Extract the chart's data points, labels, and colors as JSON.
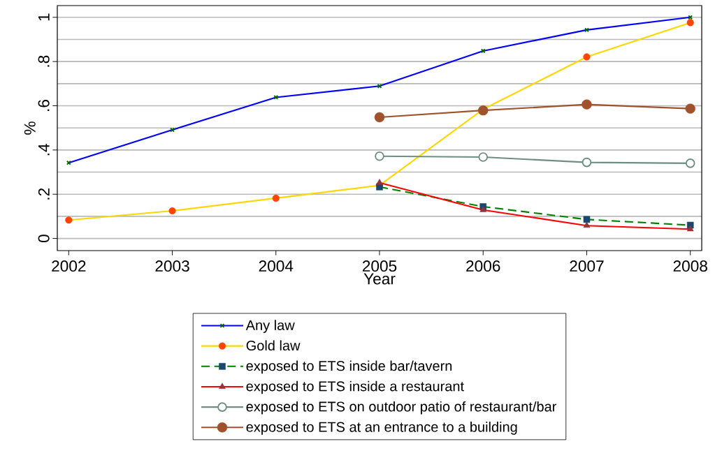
{
  "chart_data": {
    "type": "line",
    "xlabel": "Year",
    "ylabel": "%",
    "x": [
      2002,
      2003,
      2004,
      2005,
      2006,
      2007,
      2008
    ],
    "xlim": [
      2001.89,
      2008.11
    ],
    "xticks": [
      2002,
      2003,
      2004,
      2005,
      2006,
      2007,
      2008
    ],
    "ylim": [
      -0.055,
      1.053
    ],
    "yticks": [
      {
        "value": 0,
        "label": "0"
      },
      {
        "value": 0.1,
        "label": null
      },
      {
        "value": 0.2,
        "label": ".2"
      },
      {
        "value": 0.3,
        "label": null
      },
      {
        "value": 0.4,
        "label": ".4"
      },
      {
        "value": 0.5,
        "label": null
      },
      {
        "value": 0.6,
        "label": ".6"
      },
      {
        "value": 0.7,
        "label": null
      },
      {
        "value": 0.8,
        "label": ".8"
      },
      {
        "value": 0.9,
        "label": null
      },
      {
        "value": 1,
        "label": "1"
      }
    ],
    "grid": "y",
    "legend": "bottom",
    "series": [
      {
        "name": "Any law",
        "color": "#0000ff",
        "marker": "cross",
        "values": [
          0.342,
          0.491,
          0.638,
          0.689,
          0.848,
          0.943,
          1.0
        ]
      },
      {
        "name": "Gold law",
        "color": "#ffd700",
        "marker": "circle",
        "values": [
          0.083,
          0.125,
          0.182,
          0.24,
          0.584,
          0.821,
          0.976
        ]
      },
      {
        "name": "exposed to ETS inside bar/tavern",
        "color": "#008000",
        "marker": "square",
        "line_style": "dashed",
        "values": [
          null,
          null,
          null,
          0.233,
          0.144,
          0.086,
          0.06
        ]
      },
      {
        "name": "exposed to ETS inside a restaurant",
        "color": "#ff0000",
        "marker": "triangle",
        "values": [
          null,
          null,
          null,
          0.252,
          0.129,
          0.058,
          0.042
        ]
      },
      {
        "name": "exposed to ETS on outdoor patio of restaurant/bar",
        "color": "#6e8e84",
        "marker": "circle",
        "values": [
          null,
          null,
          null,
          0.372,
          0.368,
          0.344,
          0.34
        ]
      },
      {
        "name": "exposed to ETS at an entrance to a building",
        "color": "#a0522d",
        "marker": "circle",
        "values": [
          null,
          null,
          null,
          0.548,
          0.579,
          0.606,
          0.587
        ]
      }
    ]
  }
}
